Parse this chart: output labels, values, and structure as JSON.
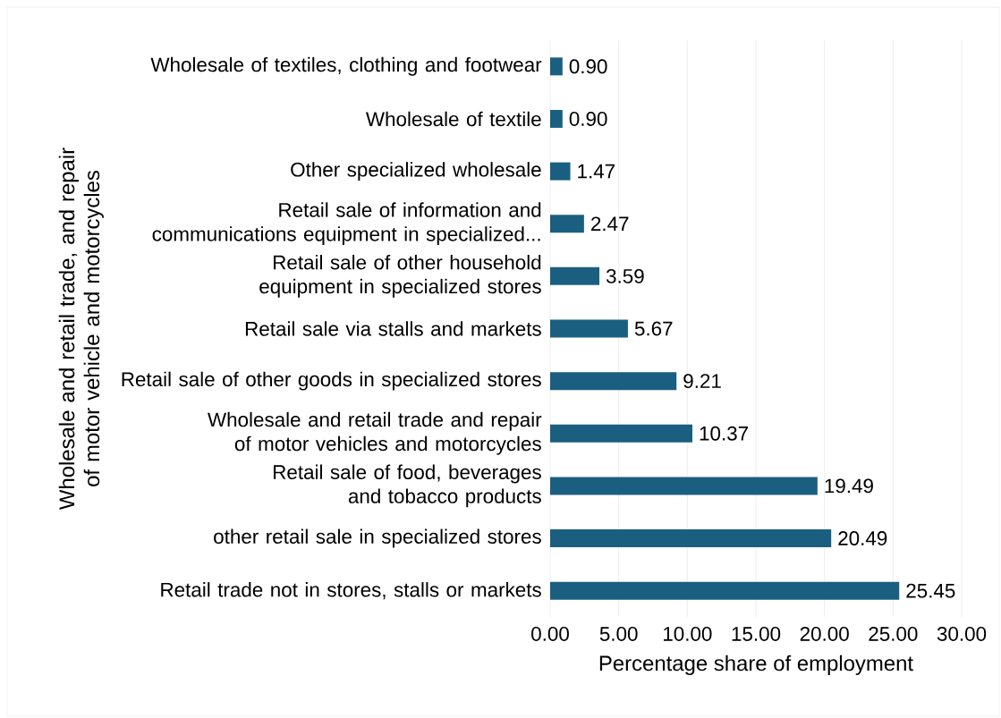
{
  "chart_data": {
    "type": "bar",
    "orientation": "horizontal",
    "xlabel": "Percentage share of employment",
    "ylabel": "Wholesale and retail trade, and repair of motor vehicle and motorcycles",
    "categories": [
      "Wholesale of textiles, clothing and footwear",
      "Wholesale of textile",
      "Other specialized wholesale",
      "Retail sale of information and communications equipment in specialized...",
      "Retail sale of other household equipment in specialized stores",
      "Retail sale via stalls and markets",
      "Retail sale of other goods in specialized stores",
      "Wholesale and retail trade and repair of motor vehicles and motorcycles",
      "Retail sale of food, beverages and tobacco products",
      "other retail sale in specialized stores",
      "Retail trade not in stores, stalls or markets"
    ],
    "values": [
      0.9,
      0.9,
      1.47,
      2.47,
      3.59,
      5.67,
      9.21,
      10.37,
      19.49,
      20.49,
      25.45
    ],
    "value_labels": [
      "0.90",
      "0.90",
      "1.47",
      "2.47",
      "3.59",
      "5.67",
      "9.21",
      "10.37",
      "19.49",
      "20.49",
      "25.45"
    ],
    "color": "#1b5f80",
    "xlim": [
      0,
      30
    ],
    "xticks": [
      {
        "value": 0,
        "label": "0.00"
      },
      {
        "value": 5,
        "label": "5.00"
      },
      {
        "value": 10,
        "label": "10.00"
      },
      {
        "value": 15,
        "label": "15.00"
      },
      {
        "value": 20,
        "label": "20.00"
      },
      {
        "value": 25,
        "label": "25.00"
      },
      {
        "value": 30,
        "label": "30.00"
      }
    ],
    "grid": "x"
  }
}
